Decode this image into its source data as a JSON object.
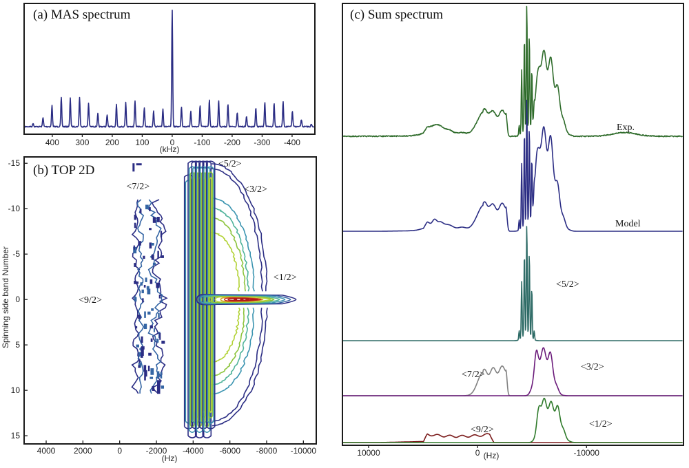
{
  "chart_data": [
    {
      "id": "a",
      "type": "line",
      "title": "(a) MAS spectrum",
      "xlabel": "(kHz)",
      "ylabel": "",
      "xlim": [
        494,
        -476
      ],
      "x_reversed": true,
      "xticks": [
        400,
        300,
        200,
        100,
        0,
        -100,
        -200,
        -300,
        -400
      ],
      "xtick_labels": [
        "400",
        "300",
        "200",
        "100",
        "0",
        "-100",
        "-200",
        "-300",
        "-400"
      ],
      "yticks": [],
      "grid": false,
      "color": "#2b2d84",
      "series": [
        {
          "name": "MAS spectrum",
          "centerband": {
            "x": 0,
            "height": 1.0
          },
          "sidebands_x": [
            464,
            431,
            401,
            370,
            340,
            309,
            279,
            248,
            217,
            186,
            155,
            124,
            93,
            62,
            31,
            -31,
            -62,
            -93,
            -124,
            -155,
            -186,
            -217,
            -248,
            -279,
            -309,
            -340,
            -370,
            -401,
            -431,
            -464
          ],
          "sidebands_height": [
            0.03,
            0.08,
            0.18,
            0.25,
            0.24,
            0.25,
            0.2,
            0.11,
            0.1,
            0.19,
            0.21,
            0.22,
            0.16,
            0.13,
            0.15,
            0.17,
            0.13,
            0.18,
            0.23,
            0.22,
            0.19,
            0.12,
            0.09,
            0.16,
            0.21,
            0.2,
            0.21,
            0.13,
            0.06,
            0.02
          ]
        }
      ]
    },
    {
      "id": "b",
      "type": "heatmap",
      "subtype": "contour",
      "title": "(b) TOP 2D",
      "xlabel": "(Hz)",
      "ylabel": "Spinning side band Number",
      "xlim": [
        5200,
        -10700
      ],
      "ylim": [
        -15.7,
        15.9
      ],
      "y_reversed": true,
      "xticks": [
        4000,
        2000,
        0,
        -2000,
        -4000,
        -6000,
        -8000,
        -10000
      ],
      "xtick_labels": [
        "4000",
        "2000",
        "0",
        "-2000",
        "-4000",
        "-6000",
        "-8000",
        "-10000"
      ],
      "yticks": [
        -15,
        -10,
        -5,
        0,
        5,
        10,
        15
      ],
      "ytick_labels": [
        "-15",
        "-10",
        "-5",
        "0",
        "5",
        "10",
        "15"
      ],
      "contour_colors": [
        "#2b2d84",
        "#3465a4",
        "#3a94b0",
        "#4fb39a",
        "#8cc43c",
        "#b2d235",
        "#d8a42a",
        "#c8321f",
        "#b01919"
      ],
      "annotations": [
        {
          "text": "<9/2>",
          "x": 1600,
          "y": 0
        },
        {
          "text": "<7/2>",
          "x": -1000,
          "y": -12.5
        },
        {
          "text": "<5/2>",
          "x": -6000,
          "y": -15
        },
        {
          "text": "<3/2>",
          "x": -7400,
          "y": -12.2
        },
        {
          "text": "<1/2>",
          "x": -9000,
          "y": -2.5
        }
      ],
      "regions": [
        {
          "name": "<7/2>",
          "x_range": [
            -500,
            -2500
          ],
          "y_range": [
            -11,
            10.5
          ]
        },
        {
          "name": "<5/2>",
          "x_range": [
            -3700,
            -5200
          ],
          "y_range": [
            -15,
            15
          ]
        },
        {
          "name": "<3/2>",
          "x_range": [
            -5200,
            -8000
          ],
          "y_range": [
            -12,
            13
          ]
        },
        {
          "name": "<1/2>",
          "x_range": [
            -4500,
            -9500
          ],
          "y_range": [
            -0.8,
            0.8
          ]
        }
      ]
    },
    {
      "id": "c",
      "type": "line",
      "title": "(c) Sum spectrum",
      "xlabel": "(Hz)",
      "ylabel": "",
      "xlim": [
        12400,
        -18900
      ],
      "x_reversed": true,
      "xticks": [
        10000,
        0,
        -10000
      ],
      "xtick_labels": [
        "10000",
        "0",
        "-10000"
      ],
      "grid": false,
      "series": [
        {
          "name": "Exp.",
          "label": "Exp.",
          "color": "#2e6b2a",
          "components": [
            "9/2",
            "7/2",
            "5/2",
            "3/2",
            "1/2"
          ],
          "noise": true
        },
        {
          "name": "Model",
          "label": "Model",
          "color": "#2b2d84",
          "components": [
            "9/2",
            "7/2",
            "5/2",
            "3/2",
            "1/2"
          ],
          "noise": false
        },
        {
          "name": "<5/2>",
          "label": "<5/2>",
          "color": "#2e6b66",
          "components": [
            "5/2"
          ]
        },
        {
          "name": "<7/2>",
          "label": "<7/2>",
          "color": "#808080",
          "components": [
            "7/2"
          ]
        },
        {
          "name": "<3/2>",
          "label": "<3/2>",
          "color": "#6a1a7a",
          "components": [
            "3/2"
          ]
        },
        {
          "name": "<9/2>",
          "label": "<9/2>",
          "color": "#7a1a1a",
          "components": [
            "9/2"
          ]
        },
        {
          "name": "<1/2>",
          "label": "<1/2>",
          "color": "#2e7a2a",
          "components": [
            "1/2"
          ]
        }
      ],
      "component_ranges_hz": {
        "9/2": [
          5000,
          -1500
        ],
        "7/2": [
          -500,
          -2700
        ],
        "5/2": [
          -3700,
          -5200
        ],
        "3/2": [
          -4700,
          -8000
        ],
        "1/2": [
          -5000,
          -8500
        ]
      }
    }
  ]
}
